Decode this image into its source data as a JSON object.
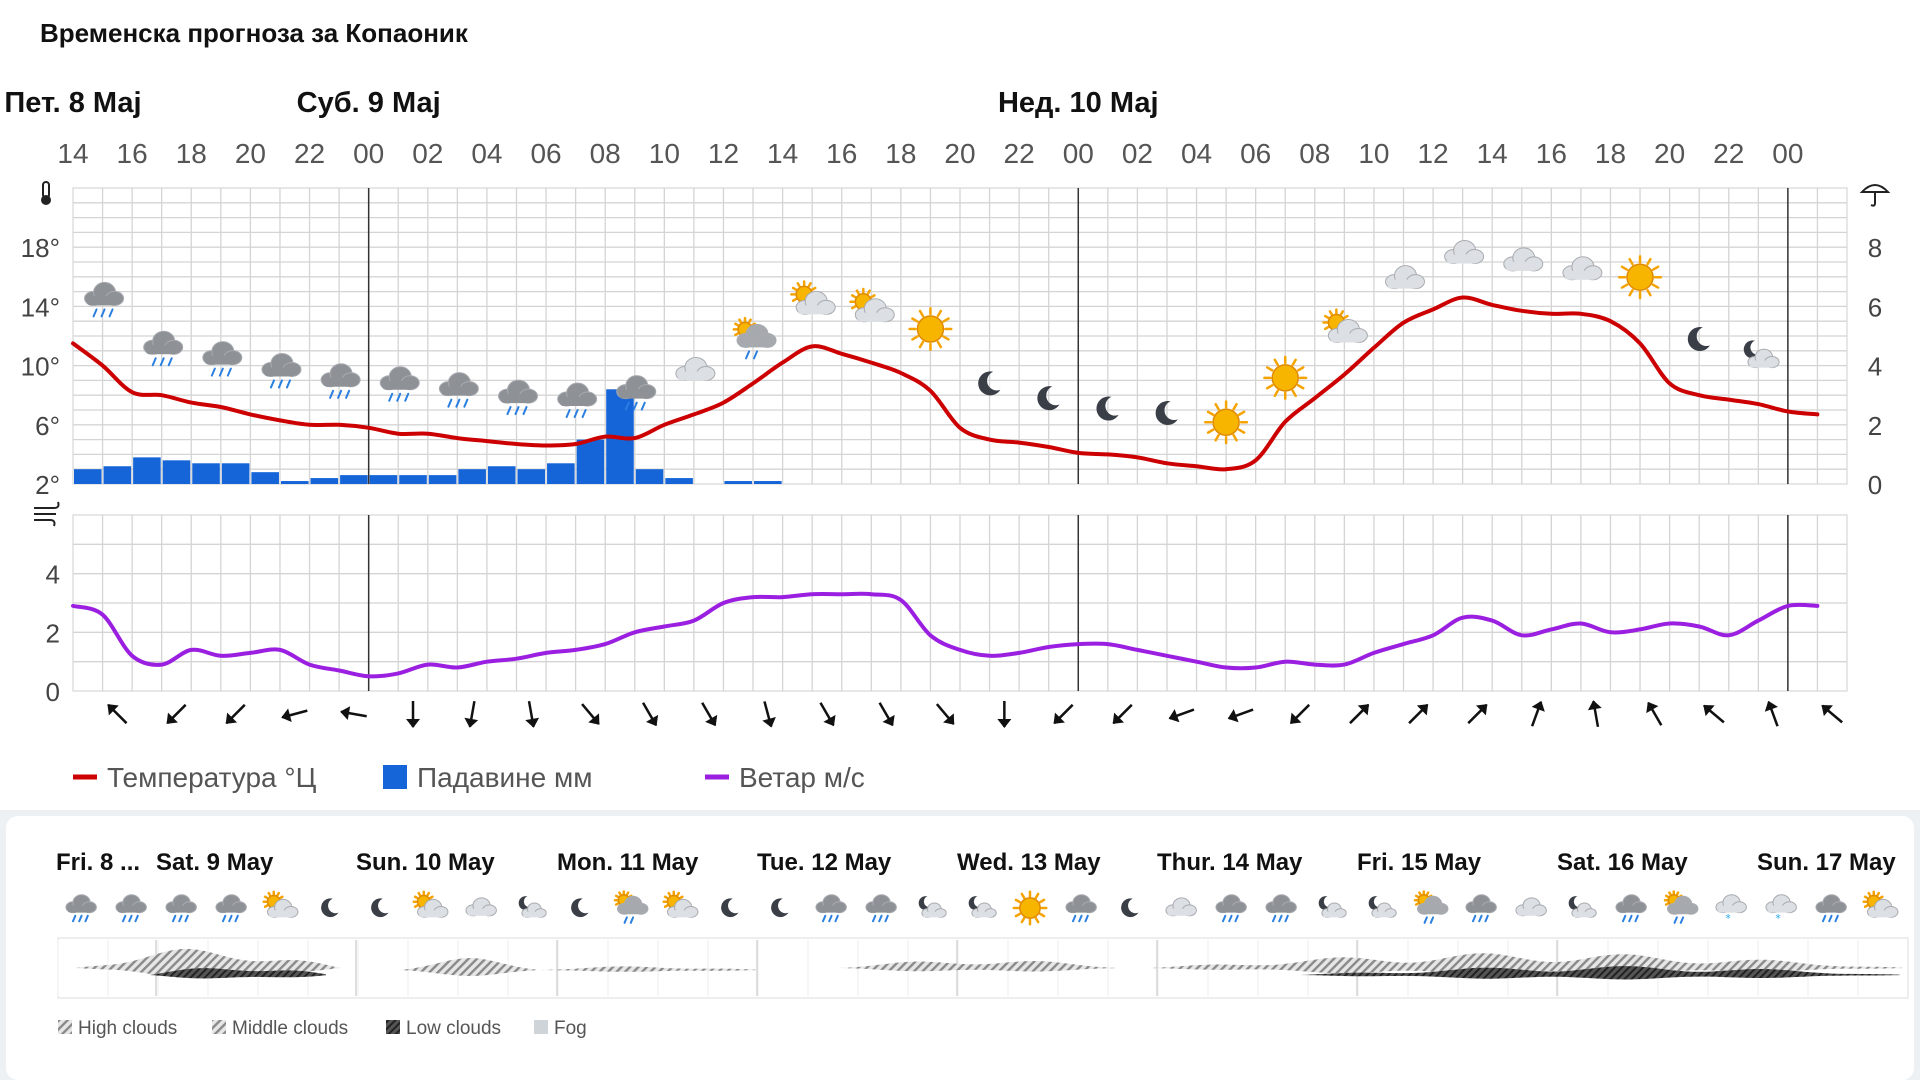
{
  "title": "Временска прогноза за Копаоник",
  "chart_data": {
    "type": "line",
    "hours": [
      "14",
      "16",
      "18",
      "20",
      "22",
      "00",
      "02",
      "04",
      "06",
      "08",
      "10",
      "12",
      "14",
      "16",
      "18",
      "20",
      "22",
      "00",
      "02",
      "04",
      "06",
      "08",
      "10",
      "12",
      "14",
      "16",
      "18",
      "20",
      "22",
      "00"
    ],
    "days": [
      {
        "label": "Пет. 8 Мај",
        "hour_index": 0
      },
      {
        "label": "Суб. 9 Мај",
        "hour_index": 5
      },
      {
        "label": "Нед. 10 Мај",
        "hour_index": 17
      }
    ],
    "temp_axis": {
      "ticks": [
        "2°",
        "6°",
        "10°",
        "14°",
        "18°"
      ],
      "values": [
        2,
        6,
        10,
        14,
        18
      ],
      "range": [
        2,
        22
      ]
    },
    "precip_axis": {
      "ticks": [
        "0",
        "2",
        "4",
        "6",
        "8"
      ],
      "values": [
        0,
        2,
        4,
        6,
        8
      ],
      "range": [
        0,
        10
      ]
    },
    "wind_axis": {
      "ticks": [
        "0",
        "2",
        "4"
      ],
      "values": [
        0,
        2,
        4
      ],
      "range": [
        0,
        6
      ]
    },
    "series": [
      {
        "name": "Температура °Ц",
        "color": "#cc0000",
        "x": [
          0,
          1,
          2,
          3,
          4,
          5,
          6,
          7,
          8,
          9,
          10,
          11,
          12,
          13,
          14,
          15,
          16,
          17,
          18,
          19,
          20,
          21,
          22,
          23,
          24,
          25,
          26,
          27,
          28,
          29,
          30,
          31,
          32,
          33,
          34,
          35,
          36,
          37,
          38,
          39,
          40,
          41,
          42,
          43,
          44,
          45,
          46,
          47,
          48,
          49,
          50,
          51,
          52,
          53,
          54,
          55,
          56,
          57,
          58,
          59
        ],
        "values": [
          11.5,
          10,
          8.2,
          8,
          7.5,
          7.2,
          6.7,
          6.3,
          6,
          6,
          5.8,
          5.4,
          5.4,
          5.1,
          4.9,
          4.7,
          4.6,
          4.7,
          5.2,
          5.1,
          6,
          6.7,
          7.5,
          8.8,
          10.2,
          11.3,
          10.8,
          10.2,
          9.5,
          8.3,
          5.8,
          5,
          4.8,
          4.5,
          4.1,
          4,
          3.8,
          3.4,
          3.2,
          3,
          3.6,
          6.2,
          7.8,
          9.4,
          11.2,
          12.9,
          13.8,
          14.6,
          14.1,
          13.7,
          13.5,
          13.5,
          13,
          11.5,
          8.8,
          8,
          7.7,
          7.4,
          6.9,
          6.7
        ]
      },
      {
        "name": "Падавине мм",
        "color": "#1565d8",
        "x": [
          0,
          1,
          2,
          3,
          4,
          5,
          6,
          7,
          8,
          9,
          10,
          11,
          12,
          13,
          14,
          15,
          16,
          17,
          18,
          19,
          20,
          21,
          22,
          23,
          24,
          25,
          26,
          27,
          28,
          29,
          30,
          31,
          32,
          33,
          34,
          35,
          36,
          37,
          38,
          39,
          40,
          41,
          42,
          43,
          44,
          45,
          46,
          47,
          48,
          49,
          50,
          51,
          52,
          53,
          54,
          55,
          56,
          57,
          58,
          59
        ],
        "values": [
          0.5,
          0.6,
          0.9,
          0.8,
          0.7,
          0.7,
          0.4,
          0.1,
          0.2,
          0.3,
          0.3,
          0.3,
          0.3,
          0.5,
          0.6,
          0.5,
          0.7,
          1.5,
          3.2,
          0.5,
          0.2,
          0,
          0.1,
          0.1,
          0,
          0,
          0,
          0,
          0,
          0,
          0,
          0,
          0,
          0,
          0,
          0,
          0,
          0,
          0,
          0,
          0,
          0,
          0,
          0,
          0,
          0,
          0,
          0,
          0,
          0,
          0,
          0,
          0,
          0,
          0,
          0,
          0,
          0,
          0,
          0
        ]
      },
      {
        "name": "Ветар м/с",
        "color": "#9b1fe0",
        "x": [
          0,
          1,
          2,
          3,
          4,
          5,
          6,
          7,
          8,
          9,
          10,
          11,
          12,
          13,
          14,
          15,
          16,
          17,
          18,
          19,
          20,
          21,
          22,
          23,
          24,
          25,
          26,
          27,
          28,
          29,
          30,
          31,
          32,
          33,
          34,
          35,
          36,
          37,
          38,
          39,
          40,
          41,
          42,
          43,
          44,
          45,
          46,
          47,
          48,
          49,
          50,
          51,
          52,
          53,
          54,
          55,
          56,
          57,
          58,
          59
        ],
        "values": [
          2.9,
          2.6,
          1.2,
          0.9,
          1.4,
          1.2,
          1.3,
          1.4,
          0.9,
          0.7,
          0.5,
          0.6,
          0.9,
          0.8,
          1,
          1.1,
          1.3,
          1.4,
          1.6,
          2,
          2.2,
          2.4,
          3,
          3.2,
          3.2,
          3.3,
          3.3,
          3.3,
          3.1,
          1.9,
          1.4,
          1.2,
          1.3,
          1.5,
          1.6,
          1.6,
          1.4,
          1.2,
          1,
          0.8,
          0.8,
          1,
          0.9,
          0.9,
          1.3,
          1.6,
          1.9,
          2.5,
          2.4,
          1.9,
          2.1,
          2.3,
          2,
          2.1,
          2.3,
          2.2,
          1.9,
          2.4,
          2.9,
          2.9
        ]
      }
    ],
    "wind_directions_deg": [
      135,
      45,
      45,
      75,
      100,
      0,
      10,
      350,
      320,
      330,
      330,
      345,
      330,
      330,
      320,
      0,
      45,
      45,
      70,
      70,
      45,
      225,
      225,
      225,
      200,
      170,
      150,
      130,
      160,
      130
    ]
  },
  "weather_icons": [
    "rain",
    "rain",
    "rain",
    "rain",
    "rain",
    "rain",
    "rain",
    "rain",
    "rain",
    "rain",
    "cloud",
    "sun-rain",
    "sun-cloud",
    "sun-cloud",
    "sun",
    "moon",
    "moon",
    "moon",
    "moon",
    "sun",
    "sun",
    "sun-cloud",
    "cloud",
    "cloud",
    "cloud",
    "cloud",
    "sun",
    "moon",
    "moon-cloud"
  ],
  "legend": [
    {
      "label": "Температура °Ц",
      "color": "#cc0000",
      "kind": "line"
    },
    {
      "label": "Падавине мм",
      "color": "#1565d8",
      "kind": "box"
    },
    {
      "label": "Ветар м/с",
      "color": "#9b1fe0",
      "kind": "line"
    }
  ],
  "bottom": {
    "days": [
      "Fri. 8 ...",
      "Sat. 9 May",
      "Sun. 10 May",
      "Mon. 11 May",
      "Tue. 12 May",
      "Wed. 13 May",
      "Thur. 14 May",
      "Fri. 15 May",
      "Sat. 16 May",
      "Sun. 17 May"
    ],
    "icons": [
      "rain",
      "rain",
      "rain",
      "rain",
      "sun-cloud",
      "moon",
      "moon",
      "sun-cloud",
      "cloud",
      "moon-cloud",
      "moon",
      "sun-rain",
      "sun-cloud",
      "moon",
      "moon",
      "rain",
      "rain",
      "moon-cloud",
      "moon-cloud",
      "sun",
      "rain",
      "moon",
      "cloud",
      "rain",
      "rain",
      "moon-cloud",
      "moon-cloud",
      "sun-rain",
      "rain",
      "cloud",
      "moon-cloud",
      "rain",
      "sun-rain",
      "snow",
      "snow",
      "rain",
      "sun-cloud"
    ],
    "cloud_legend": [
      "High clouds",
      "Middle clouds",
      "Low clouds",
      "Fog"
    ]
  }
}
